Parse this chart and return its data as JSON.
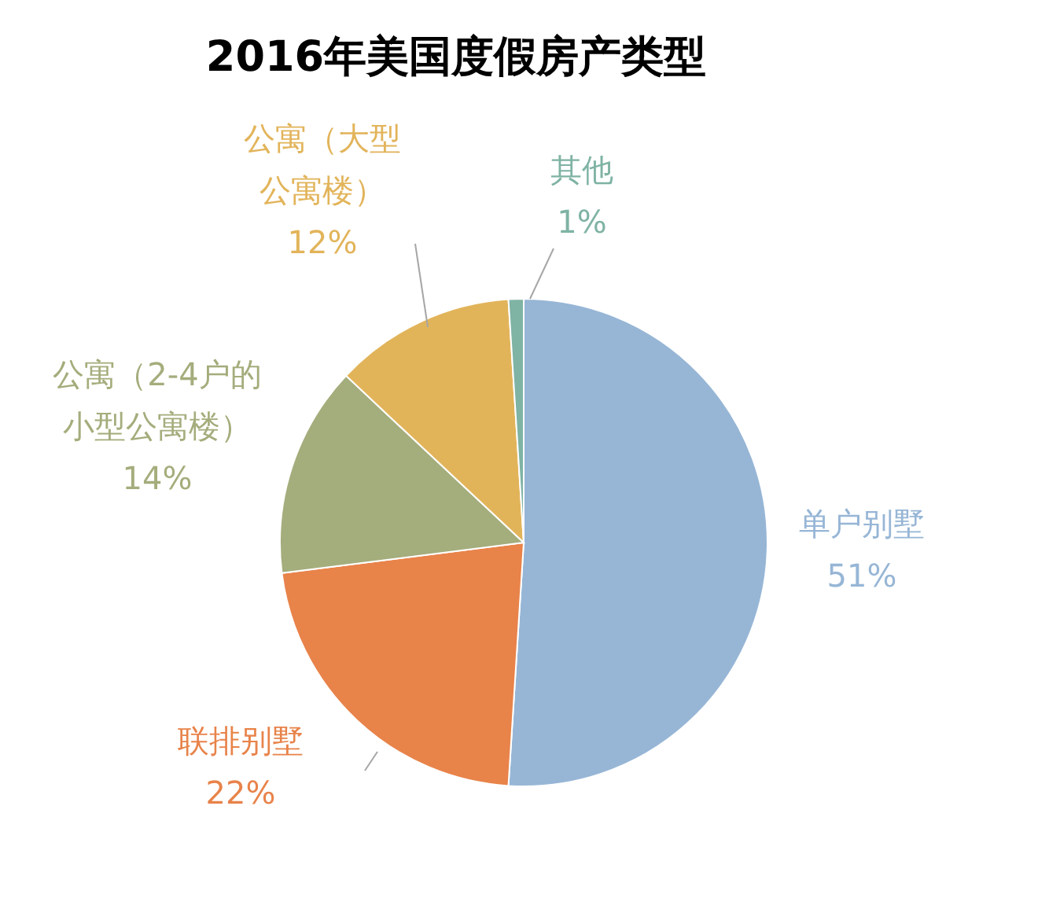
{
  "chart_data": {
    "type": "pie",
    "title": "2016年美国度假房产类型",
    "categories": [
      "单户别墅",
      "联排别墅",
      "公寓（2-4户的小型公寓楼）",
      "公寓（大型公寓楼）",
      "其他"
    ],
    "values": [
      51,
      22,
      14,
      12,
      1
    ],
    "colors": [
      "#97b6d6",
      "#e8834a",
      "#a4ad7c",
      "#e2b45a",
      "#7fb3a4"
    ],
    "value_labels": [
      "51%",
      "22%",
      "14%",
      "12%",
      "1%"
    ]
  }
}
